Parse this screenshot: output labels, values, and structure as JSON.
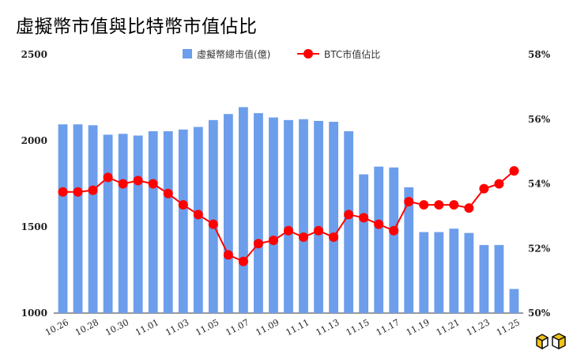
{
  "chart_data": {
    "type": "bar",
    "title": "虛擬幣市值與比特幣市值佔比",
    "categories": [
      "10.26",
      "10.27",
      "10.28",
      "10.29",
      "10.30",
      "10.31",
      "11.01",
      "11.02",
      "11.03",
      "11.04",
      "11.05",
      "11.06",
      "11.07",
      "11.08",
      "11.09",
      "11.10",
      "11.11",
      "11.12",
      "11.13",
      "11.14",
      "11.15",
      "11.16",
      "11.17",
      "11.18",
      "11.19",
      "11.20",
      "11.21",
      "11.22",
      "11.23",
      "11.24",
      "11.25"
    ],
    "x_tick_labels": [
      "10.26",
      "10.28",
      "10.30",
      "11.01",
      "11.03",
      "11.05",
      "11.07",
      "11.09",
      "11.11",
      "11.13",
      "11.15",
      "11.17",
      "11.19",
      "11.21",
      "11.23",
      "11.25"
    ],
    "series": [
      {
        "name": "虛擬幣總市值(億)",
        "type": "bar",
        "axis": "left",
        "color": "#6d9eeb",
        "values": [
          2095,
          2095,
          2090,
          2035,
          2040,
          2030,
          2055,
          2055,
          2065,
          2080,
          2120,
          2155,
          2195,
          2160,
          2135,
          2120,
          2125,
          2115,
          2110,
          2055,
          1805,
          1850,
          1845,
          1730,
          1470,
          1470,
          1490,
          1465,
          1395,
          1395,
          1140
        ]
      },
      {
        "name": "BTC市值佔比",
        "type": "line",
        "axis": "right",
        "color": "#ff0000",
        "values": [
          53.75,
          53.75,
          53.8,
          54.2,
          54.0,
          54.1,
          54.0,
          53.7,
          53.35,
          53.05,
          52.75,
          51.8,
          51.6,
          52.15,
          52.25,
          52.55,
          52.35,
          52.55,
          52.35,
          53.05,
          52.95,
          52.75,
          52.55,
          53.45,
          53.35,
          53.35,
          53.35,
          53.25,
          53.85,
          54.0,
          54.4
        ]
      }
    ],
    "y_left": {
      "min": 1000,
      "max": 2500,
      "ticks": [
        "1000",
        "1500",
        "2000",
        "2500"
      ]
    },
    "y_right": {
      "min": 50,
      "max": 58,
      "ticks": [
        "50%",
        "52%",
        "54%",
        "56%",
        "58%"
      ]
    },
    "legend_position": "top",
    "grid": false
  },
  "colors": {
    "bar": "#6d9eeb",
    "line": "#ff0000",
    "axis": "#333333"
  },
  "logo": {
    "icon": "cube-logo-icon"
  }
}
